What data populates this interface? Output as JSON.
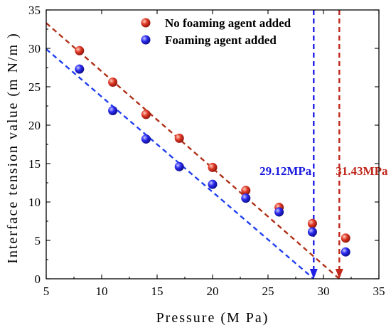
{
  "chart_data": {
    "type": "scatter",
    "xlabel": "Pressure (M Pa)",
    "ylabel": "Interface tension value (m N/m )",
    "xlim": [
      5,
      35
    ],
    "ylim": [
      0,
      35
    ],
    "x_ticks": [
      5,
      10,
      15,
      20,
      25,
      30,
      35
    ],
    "y_ticks": [
      0,
      5,
      10,
      15,
      20,
      25,
      30,
      35
    ],
    "grid": false,
    "legend_position": "top-right",
    "series": [
      {
        "name": "No foaming agent added",
        "color": "#d42a1e",
        "points": [
          {
            "x": 8,
            "y": 29.7
          },
          {
            "x": 11,
            "y": 25.6
          },
          {
            "x": 14,
            "y": 21.4
          },
          {
            "x": 17,
            "y": 18.3
          },
          {
            "x": 20,
            "y": 14.5
          },
          {
            "x": 23,
            "y": 11.5
          },
          {
            "x": 26,
            "y": 9.3
          },
          {
            "x": 29,
            "y": 7.2
          },
          {
            "x": 32,
            "y": 5.3
          }
        ],
        "fit_line": {
          "x": [
            5,
            31.43
          ],
          "y": [
            33.3,
            0
          ]
        }
      },
      {
        "name": "Foaming agent added",
        "color": "#1a1ae0",
        "points": [
          {
            "x": 8,
            "y": 27.3
          },
          {
            "x": 11,
            "y": 21.9
          },
          {
            "x": 14,
            "y": 18.2
          },
          {
            "x": 17,
            "y": 14.6
          },
          {
            "x": 20,
            "y": 12.3
          },
          {
            "x": 23,
            "y": 10.5
          },
          {
            "x": 26,
            "y": 8.7
          },
          {
            "x": 29,
            "y": 6.1
          },
          {
            "x": 32,
            "y": 3.5
          }
        ],
        "fit_line": {
          "x": [
            5,
            29.12
          ],
          "y": [
            29.9,
            0
          ]
        }
      }
    ],
    "annotations": [
      {
        "text": "29.12MPa",
        "x": 29.12,
        "color": "#1a1ae0"
      },
      {
        "text": "31.43MPa",
        "x": 31.43,
        "color": "#c0281c"
      }
    ]
  }
}
